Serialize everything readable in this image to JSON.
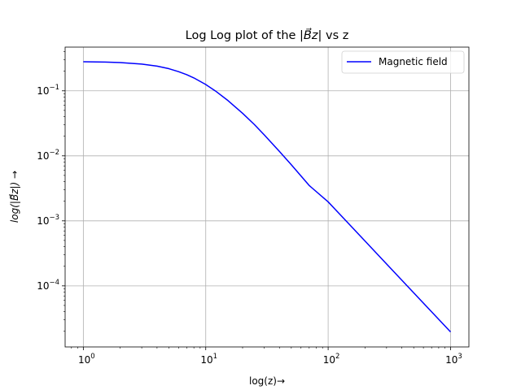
{
  "chart_data": {
    "type": "line",
    "title_main": "Log Log plot of the ",
    "title_var": "|B⃗z|",
    "title_tail": " vs z",
    "xlabel": "log(z)→",
    "ylabel": "log(|B⃗z|) →",
    "xscale": "log",
    "yscale": "log",
    "xlim": [
      0.71,
      1412
    ],
    "ylim": [
      1.15e-05,
      0.47
    ],
    "grid": true,
    "legend_placement": "top-right",
    "x_ticks": [
      {
        "value": 1,
        "base": "10",
        "exp": "0"
      },
      {
        "value": 10,
        "base": "10",
        "exp": "1"
      },
      {
        "value": 100,
        "base": "10",
        "exp": "2"
      },
      {
        "value": 1000,
        "base": "10",
        "exp": "3"
      }
    ],
    "y_ticks": [
      {
        "value": 0.0001,
        "base": "10",
        "exp": "−4"
      },
      {
        "value": 0.001,
        "base": "10",
        "exp": "−3"
      },
      {
        "value": 0.01,
        "base": "10",
        "exp": "−2"
      },
      {
        "value": 0.1,
        "base": "10",
        "exp": "−1"
      }
    ],
    "series": [
      {
        "name": "Magnetic field",
        "color": "#0000ff",
        "x": [
          1,
          1.5,
          2,
          3,
          4,
          5,
          6,
          7,
          8,
          10,
          12,
          15,
          20,
          25,
          30,
          40,
          50,
          70,
          100,
          150,
          200,
          300,
          500,
          700,
          1000
        ],
        "y": [
          0.28,
          0.277,
          0.272,
          0.258,
          0.24,
          0.219,
          0.197,
          0.177,
          0.158,
          0.125,
          0.0995,
          0.0722,
          0.0451,
          0.0302,
          0.0211,
          0.0117,
          0.0073,
          0.0035,
          0.00196,
          0.00087,
          0.00049,
          0.000217,
          7.82e-05,
          3.99e-05,
          1.96e-05
        ]
      }
    ]
  }
}
